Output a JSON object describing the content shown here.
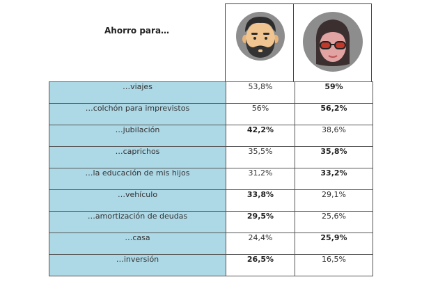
{
  "header": {
    "title": "Ahorro para…"
  },
  "avatars": {
    "male": "man-avatar-icon",
    "female": "woman-avatar-icon"
  },
  "colors": {
    "label_bg": "#add8e6",
    "avatar_bg": "#8d8d8d",
    "skin": "#f1c590"
  },
  "rows": [
    {
      "label": "…viajes",
      "male": "53,8%",
      "female": "59%",
      "male_bold": false,
      "female_bold": true
    },
    {
      "label": "…colchón para imprevistos",
      "male": "56%",
      "female": "56,2%",
      "male_bold": false,
      "female_bold": true
    },
    {
      "label": "…jubilación",
      "male": "42,2%",
      "female": "38,6%",
      "male_bold": true,
      "female_bold": false
    },
    {
      "label": "…caprichos",
      "male": "35,5%",
      "female": "35,8%",
      "male_bold": false,
      "female_bold": true
    },
    {
      "label": "…la educación de mis hijos",
      "male": "31,2%",
      "female": "33,2%",
      "male_bold": false,
      "female_bold": true
    },
    {
      "label": "…vehículo",
      "male": "33,8%",
      "female": "29,1%",
      "male_bold": true,
      "female_bold": false
    },
    {
      "label": "…amortización de deudas",
      "male": "29,5%",
      "female": "25,6%",
      "male_bold": true,
      "female_bold": false
    },
    {
      "label": "…casa",
      "male": "24,4%",
      "female": "25,9%",
      "male_bold": false,
      "female_bold": true
    },
    {
      "label": "…inversión",
      "male": "26,5%",
      "female": "16,5%",
      "male_bold": true,
      "female_bold": false
    }
  ]
}
